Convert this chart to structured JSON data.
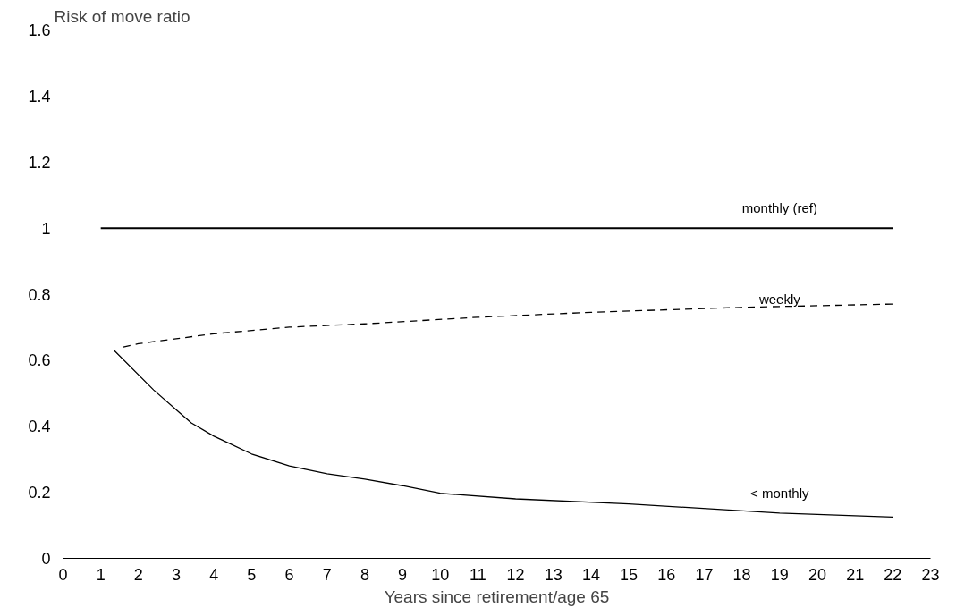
{
  "chart_data": {
    "type": "line",
    "xlabel": "Years since retirement/age 65",
    "ylabel": "Risk of move ratio",
    "xlim": [
      0,
      23
    ],
    "xticks": [
      0,
      1,
      2,
      3,
      4,
      5,
      6,
      7,
      8,
      9,
      10,
      11,
      12,
      13,
      14,
      15,
      16,
      17,
      18,
      19,
      20,
      21,
      22,
      23
    ],
    "ylim": [
      0,
      1.6
    ],
    "yticks": [
      0,
      0.2,
      0.4,
      0.6,
      0.8,
      1,
      1.2,
      1.4,
      1.6
    ],
    "grid": false,
    "legend": false,
    "marker": "none",
    "series": [
      {
        "name": "monthly (ref)",
        "color": "#000000",
        "line_style": "solid",
        "x": [
          1,
          22
        ],
        "values": [
          1.0,
          1.0
        ]
      },
      {
        "name": "weekly",
        "color": "#000000",
        "line_style": "dashed",
        "x": [
          1.6,
          2,
          3,
          4,
          6,
          8,
          11,
          14,
          18,
          22
        ],
        "values": [
          0.64,
          0.65,
          0.665,
          0.68,
          0.7,
          0.71,
          0.73,
          0.745,
          0.76,
          0.77
        ]
      },
      {
        "name": "< monthly",
        "color": "#000000",
        "line_style": "solid",
        "x": [
          1.35,
          2.4,
          3.1,
          3.4,
          4,
          5,
          6,
          7,
          8,
          9,
          10,
          12,
          15,
          19,
          22
        ],
        "values": [
          0.63,
          0.51,
          0.44,
          0.41,
          0.37,
          0.316,
          0.28,
          0.256,
          0.24,
          0.22,
          0.197,
          0.18,
          0.165,
          0.137,
          0.125
        ]
      }
    ]
  }
}
